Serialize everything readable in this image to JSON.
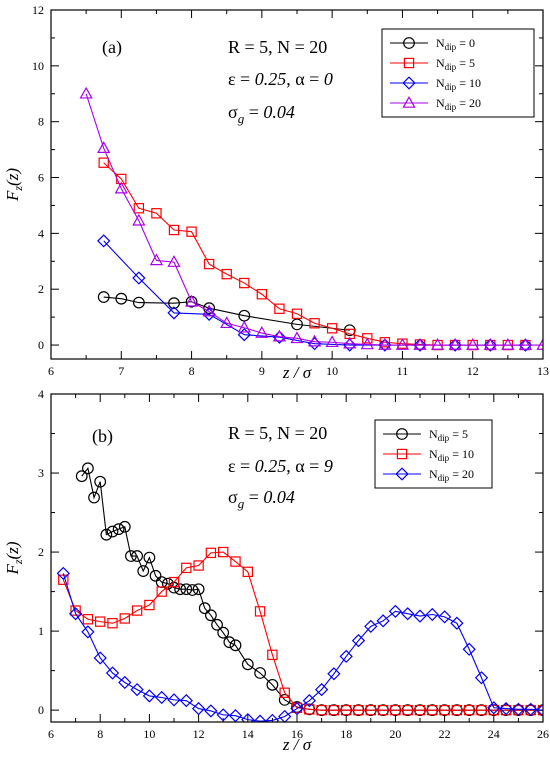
{
  "chart_data": [
    {
      "type": "line",
      "panel_label": "(a)",
      "xlabel": "z / σ",
      "ylabel": "F_z(z)",
      "xlim": [
        6,
        13
      ],
      "ylim": [
        -0.5,
        12
      ],
      "xticks": [
        6,
        7,
        8,
        9,
        10,
        11,
        12,
        13
      ],
      "yticks": [
        0,
        2,
        4,
        6,
        8,
        10,
        12
      ],
      "annotations": [
        [
          "R = 5,  N = 20"
        ],
        [
          "ε = ",
          "0.25",
          ",   α = ",
          "0"
        ],
        [
          "σ",
          "g",
          " = ",
          "0.04"
        ]
      ],
      "legend_position": "top-right",
      "series": [
        {
          "name_main": "N",
          "name_sub": "dip",
          "name_rest": " = 0",
          "color": "#000000",
          "marker": "circle",
          "x": [
            6.75,
            7.0,
            7.25,
            7.75,
            8.0,
            8.25,
            8.75,
            9.5,
            10.25
          ],
          "y": [
            1.72,
            1.66,
            1.52,
            1.5,
            1.55,
            1.32,
            1.05,
            0.74,
            0.53
          ]
        },
        {
          "name_main": "N",
          "name_sub": "dip",
          "name_rest": " = 5",
          "color": "#ff0000",
          "marker": "square",
          "x": [
            6.75,
            7.0,
            7.25,
            7.5,
            7.75,
            8.0,
            8.25,
            8.5,
            8.75,
            9.0,
            9.25,
            9.5,
            9.75,
            10.0,
            10.25,
            10.5,
            10.75,
            11.0,
            11.25,
            11.5,
            11.75,
            12.0,
            12.25,
            12.5,
            12.75
          ],
          "y": [
            6.53,
            5.95,
            4.9,
            4.72,
            4.12,
            4.06,
            2.9,
            2.54,
            2.22,
            1.82,
            1.3,
            1.12,
            0.78,
            0.6,
            0.4,
            0.24,
            0.1,
            0.05,
            0.02,
            0.0,
            0.0,
            0.0,
            0.0,
            0.0,
            0.0
          ]
        },
        {
          "name_main": "N",
          "name_sub": "dip",
          "name_rest": " = 10",
          "color": "#0000ff",
          "marker": "diamond",
          "x": [
            6.75,
            7.25,
            7.75,
            8.25,
            8.75,
            9.25,
            9.75,
            10.25,
            10.75,
            11.25,
            11.75,
            12.25,
            12.75
          ],
          "y": [
            3.73,
            2.4,
            1.15,
            1.1,
            0.37,
            0.28,
            0.05,
            0.0,
            0.0,
            0.0,
            0.0,
            0.0,
            0.0
          ]
        },
        {
          "name_main": "N",
          "name_sub": "dip",
          "name_rest": " = 20",
          "color": "#aa00ee",
          "marker": "triangle",
          "x": [
            6.5,
            6.75,
            7.0,
            7.25,
            7.5,
            7.75,
            8.0,
            8.25,
            8.5,
            8.75,
            9.0,
            9.25,
            9.5,
            9.75,
            10.0,
            10.25,
            10.5,
            10.75,
            11.0,
            11.25,
            11.5,
            11.75,
            12.0,
            12.25,
            12.5,
            12.75,
            13.0
          ],
          "y": [
            9.0,
            7.05,
            5.6,
            4.45,
            3.03,
            2.97,
            1.55,
            1.2,
            0.78,
            0.62,
            0.43,
            0.3,
            0.24,
            0.12,
            0.1,
            0.05,
            0.02,
            0.0,
            0.0,
            0.0,
            0.0,
            0.0,
            0.0,
            0.0,
            0.0,
            0.0,
            0.0
          ]
        }
      ]
    },
    {
      "type": "line",
      "panel_label": "(b)",
      "xlabel": "z / σ",
      "ylabel": "F_z(z)",
      "xlim": [
        6,
        26
      ],
      "ylim": [
        -0.15,
        4
      ],
      "xticks": [
        6,
        8,
        10,
        12,
        14,
        16,
        18,
        20,
        22,
        24,
        26
      ],
      "yticks": [
        0,
        1,
        2,
        3,
        4
      ],
      "annotations": [
        [
          "R = 5,  N = 20"
        ],
        [
          "ε = ",
          "0.25",
          ",   α =   ",
          "9"
        ],
        [
          "σ",
          "g",
          " = ",
          "0.04"
        ]
      ],
      "legend_position": "top-right",
      "series": [
        {
          "name_main": "N",
          "name_sub": "dip",
          "name_rest": " = 5",
          "color": "#000000",
          "marker": "circle",
          "x": [
            7.25,
            7.5,
            7.75,
            8.0,
            8.25,
            8.5,
            8.75,
            9.0,
            9.25,
            9.5,
            9.75,
            10.0,
            10.25,
            10.5,
            10.75,
            11.0,
            11.25,
            11.5,
            11.75,
            12.0,
            12.25,
            12.5,
            12.75,
            13.0,
            13.25,
            13.5,
            14.0,
            14.5,
            15.0,
            15.5,
            16.0,
            16.5,
            17.0,
            17.5,
            18.0,
            18.5,
            19.0,
            19.5,
            20.0,
            20.5,
            21.0,
            21.5,
            22.0,
            22.5,
            23.0,
            23.5,
            24.0,
            24.5,
            25.0,
            25.5,
            26.0
          ],
          "y": [
            2.96,
            3.06,
            2.69,
            2.89,
            2.22,
            2.26,
            2.29,
            2.32,
            1.95,
            1.95,
            1.76,
            1.93,
            1.7,
            1.62,
            1.6,
            1.55,
            1.53,
            1.53,
            1.52,
            1.53,
            1.29,
            1.2,
            1.08,
            0.98,
            0.86,
            0.82,
            0.58,
            0.47,
            0.32,
            0.13,
            0.04,
            0.01,
            0.0,
            0.0,
            0.0,
            0.0,
            0.0,
            0.0,
            0.0,
            0.0,
            0.0,
            0.0,
            0.0,
            0.0,
            0.0,
            0.0,
            0.0,
            0.0,
            0.0,
            0.0,
            0.0
          ]
        },
        {
          "name_main": "N",
          "name_sub": "dip",
          "name_rest": " = 10",
          "color": "#ff0000",
          "marker": "square",
          "x": [
            6.5,
            7.0,
            7.5,
            8.0,
            8.5,
            9.0,
            9.5,
            10.0,
            10.5,
            11.0,
            11.5,
            12.0,
            12.5,
            13.0,
            13.5,
            14.0,
            14.5,
            15.0,
            15.5,
            16.0,
            16.5,
            17.0,
            17.5,
            18.0,
            18.5,
            19.0,
            19.5,
            20.0,
            20.5,
            21.0,
            21.5,
            22.0,
            22.5,
            23.0,
            23.5,
            24.0,
            24.5,
            25.0,
            25.5,
            26.0
          ],
          "y": [
            1.65,
            1.26,
            1.15,
            1.12,
            1.1,
            1.16,
            1.26,
            1.33,
            1.5,
            1.62,
            1.8,
            1.83,
            1.99,
            2.0,
            1.88,
            1.75,
            1.25,
            0.7,
            0.22,
            0.03,
            0.01,
            0.0,
            0.0,
            0.0,
            0.0,
            0.0,
            0.0,
            0.0,
            0.0,
            0.0,
            0.0,
            0.0,
            0.0,
            0.0,
            0.0,
            0.0,
            0.0,
            0.0,
            0.0,
            0.0
          ]
        },
        {
          "name_main": "N",
          "name_sub": "dip",
          "name_rest": " = 20",
          "color": "#0000ff",
          "marker": "diamond",
          "x": [
            6.5,
            7.0,
            7.5,
            8.0,
            8.5,
            9.0,
            9.5,
            10.0,
            10.5,
            11.0,
            11.5,
            12.0,
            12.5,
            13.0,
            13.5,
            14.0,
            14.5,
            15.0,
            15.5,
            16.0,
            16.5,
            17.0,
            17.5,
            18.0,
            18.5,
            19.0,
            19.5,
            20.0,
            20.5,
            21.0,
            21.5,
            22.0,
            22.5,
            23.0,
            23.5,
            24.0,
            24.5,
            25.0,
            25.5,
            26.0
          ],
          "y": [
            1.73,
            1.22,
            0.99,
            0.66,
            0.47,
            0.35,
            0.26,
            0.18,
            0.16,
            0.13,
            0.12,
            0.02,
            -0.01,
            -0.06,
            -0.07,
            -0.12,
            -0.14,
            -0.13,
            -0.08,
            0.02,
            0.12,
            0.26,
            0.46,
            0.68,
            0.88,
            1.06,
            1.13,
            1.25,
            1.22,
            1.19,
            1.21,
            1.18,
            1.1,
            0.77,
            0.41,
            0.03,
            0.02,
            0.01,
            0.01,
            0.0
          ]
        }
      ]
    }
  ]
}
